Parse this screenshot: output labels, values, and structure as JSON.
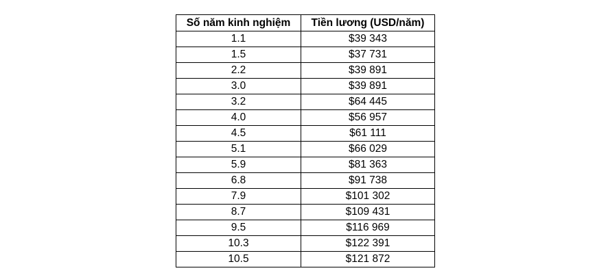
{
  "table": {
    "headers": [
      "Số năm kinh nghiệm",
      "Tiền lương (USD/năm)"
    ],
    "rows": [
      [
        "1.1",
        "$39 343"
      ],
      [
        "1.5",
        "$37 731"
      ],
      [
        "2.2",
        "$39 891"
      ],
      [
        "3.0",
        "$39 891"
      ],
      [
        "3.2",
        "$64 445"
      ],
      [
        "4.0",
        "$56 957"
      ],
      [
        "4.5",
        "$61 111"
      ],
      [
        "5.1",
        "$66 029"
      ],
      [
        "5.9",
        "$81 363"
      ],
      [
        "6.8",
        "$91 738"
      ],
      [
        "7.9",
        "$101 302"
      ],
      [
        "8.7",
        "$109 431"
      ],
      [
        "9.5",
        "$116 969"
      ],
      [
        "10.3",
        "$122 391"
      ],
      [
        "10.5",
        "$121 872"
      ]
    ]
  }
}
